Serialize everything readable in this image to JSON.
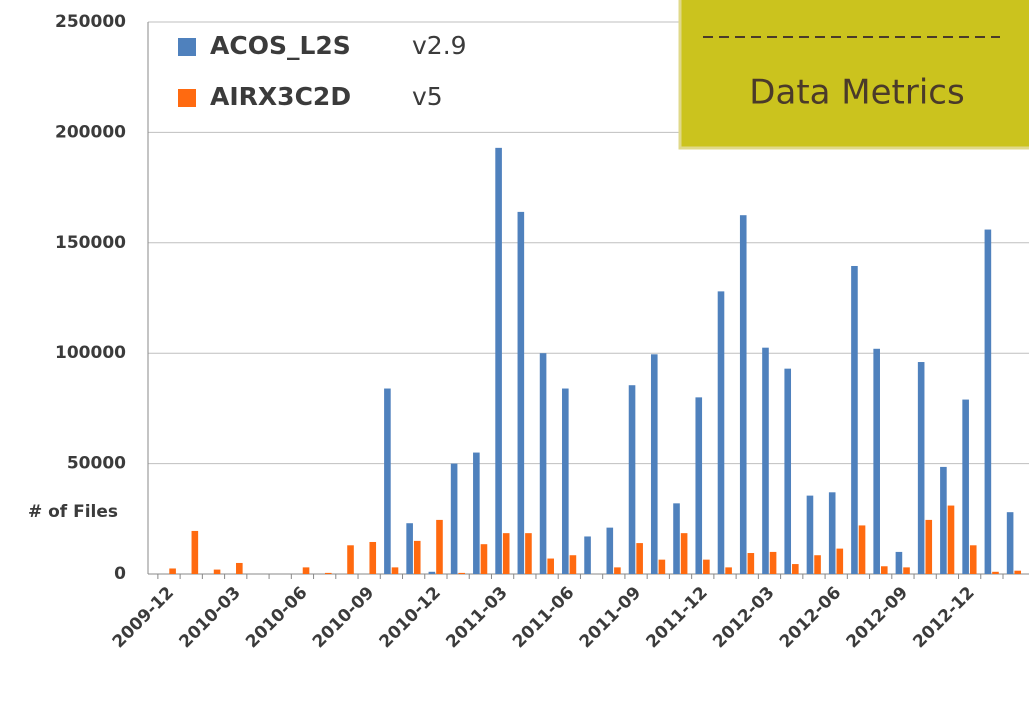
{
  "chart_data": {
    "type": "bar",
    "ylabel": "# of Files",
    "annotation": "Data Metrics",
    "categories": [
      "2009-12",
      null,
      null,
      "2010-03",
      null,
      null,
      "2010-06",
      null,
      null,
      "2010-09",
      null,
      null,
      "2010-12",
      null,
      null,
      "2011-03",
      null,
      null,
      "2011-06",
      null,
      null,
      "2011-09",
      null,
      null,
      "2011-12",
      null,
      null,
      "2012-03",
      null,
      null,
      "2012-06",
      null,
      null,
      "2012-09",
      null,
      null,
      "2012-12",
      null,
      null
    ],
    "series": [
      {
        "name": "ACOS_L2S",
        "version": "v2.9",
        "color": "#4f81bd",
        "values": [
          0,
          0,
          0,
          0,
          0,
          0,
          0,
          0,
          0,
          0,
          84000,
          23000,
          1000,
          50000,
          55000,
          193000,
          164000,
          100000,
          84000,
          17000,
          21000,
          85500,
          99500,
          32000,
          80000,
          128000,
          162500,
          102500,
          93000,
          35500,
          37000,
          139500,
          102000,
          10000,
          96000,
          48500,
          79000,
          156000,
          28000
        ]
      },
      {
        "name": "AIRX3C2D",
        "version": "v5",
        "color": "#ff6a10",
        "values": [
          2500,
          19500,
          2000,
          5000,
          0,
          0,
          3000,
          500,
          13000,
          14500,
          3000,
          15000,
          24500,
          500,
          13500,
          18500,
          18500,
          7000,
          8500,
          0,
          3000,
          14000,
          6500,
          18500,
          6500,
          3000,
          9500,
          10000,
          4500,
          8500,
          11500,
          22000,
          3500,
          3000,
          24500,
          31000,
          13000,
          1000,
          1500
        ]
      }
    ],
    "ylim": [
      0,
      250000
    ],
    "yticks": [
      0,
      50000,
      100000,
      150000,
      200000,
      250000
    ],
    "grid": true
  }
}
